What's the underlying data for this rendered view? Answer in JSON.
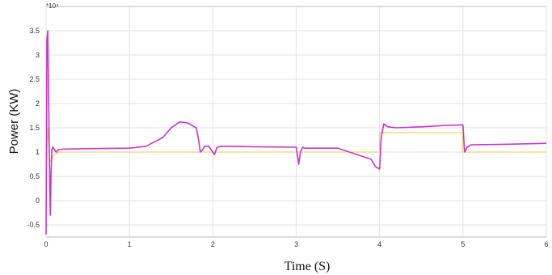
{
  "chart_data": {
    "type": "line",
    "xlabel": "Time (S)",
    "ylabel": "Power (KW)",
    "y_multiplier": "*10⁴",
    "xlim": [
      0,
      6
    ],
    "ylim": [
      -0.75,
      4.0
    ],
    "x_ticks": [
      "0",
      "1",
      "2",
      "3",
      "4",
      "5",
      "6"
    ],
    "y_ticks": [
      "-0.5",
      "0",
      "0.5",
      "1",
      "1.5",
      "2",
      "2.5",
      "3",
      "3.5"
    ],
    "x_tick_values": [
      0,
      1,
      2,
      3,
      4,
      5,
      6
    ],
    "y_tick_values": [
      -0.5,
      0,
      0.5,
      1,
      1.5,
      2,
      2.5,
      3,
      3.5
    ],
    "grid": true,
    "series": [
      {
        "color": "#f5c542",
        "x": [
          0,
          0.02,
          0.03,
          0.05,
          0.08,
          0.1,
          0.15,
          0.2,
          4.0,
          4.0,
          4.05,
          5.0,
          5.0,
          6.0
        ],
        "y": [
          0.5,
          1.5,
          1.2,
          0.8,
          0.9,
          0.95,
          1.0,
          1.0,
          1.0,
          1.4,
          1.4,
          1.4,
          1.0,
          1.0
        ]
      },
      {
        "color": "#cc33cc",
        "x": [
          0,
          0.01,
          0.02,
          0.03,
          0.04,
          0.05,
          0.06,
          0.07,
          0.08,
          0.1,
          0.12,
          0.15,
          0.2,
          0.5,
          1.0,
          1.2,
          1.4,
          1.5,
          1.6,
          1.7,
          1.8,
          1.83,
          1.85,
          1.88,
          1.9,
          1.95,
          2.0,
          2.02,
          2.05,
          2.1,
          2.5,
          3.0,
          3.03,
          3.05,
          3.08,
          3.1,
          3.2,
          3.5,
          3.9,
          3.95,
          4.0,
          4.02,
          4.05,
          4.1,
          4.2,
          4.5,
          4.8,
          5.0,
          5.02,
          5.05,
          5.1,
          5.5,
          6.0
        ],
        "y": [
          -0.7,
          3.3,
          3.5,
          2.2,
          0.9,
          -0.3,
          0.6,
          1.05,
          1.1,
          1.05,
          1.0,
          1.05,
          1.06,
          1.07,
          1.08,
          1.12,
          1.3,
          1.5,
          1.62,
          1.6,
          1.5,
          1.25,
          1.0,
          1.05,
          1.12,
          1.12,
          1.0,
          0.95,
          1.1,
          1.12,
          1.11,
          1.1,
          0.75,
          1.0,
          1.1,
          1.08,
          1.08,
          1.08,
          0.85,
          0.7,
          0.65,
          1.3,
          1.58,
          1.52,
          1.5,
          1.52,
          1.55,
          1.56,
          1.0,
          1.1,
          1.15,
          1.16,
          1.18
        ]
      }
    ]
  }
}
